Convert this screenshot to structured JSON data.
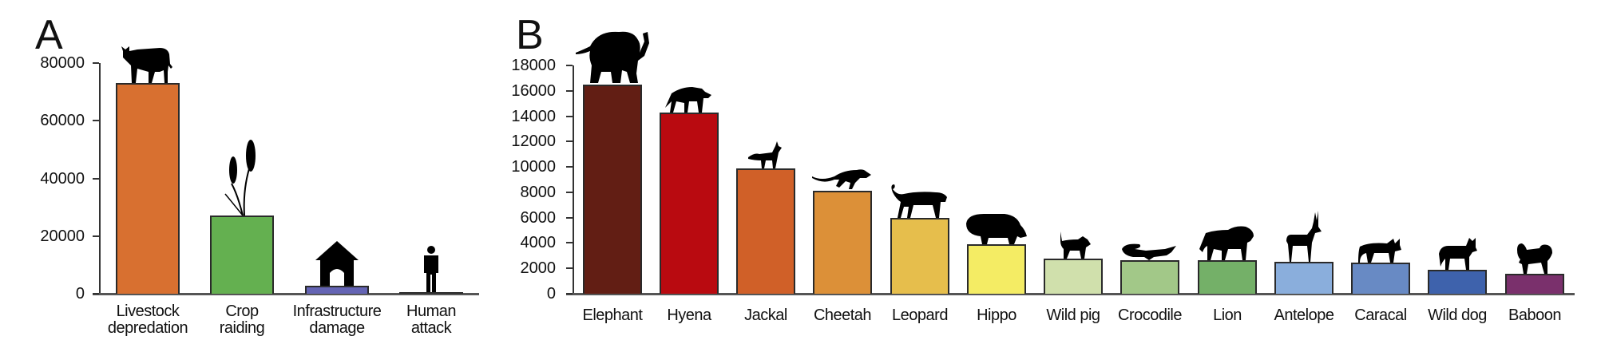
{
  "panels": {
    "A": {
      "letter": "A"
    },
    "B": {
      "letter": "B"
    }
  },
  "chart_data": [
    {
      "type": "bar",
      "title": "A",
      "xlabel": "",
      "ylabel": "",
      "ylim": [
        0,
        80000
      ],
      "yticks": [
        "0",
        "20000",
        "40000",
        "60000",
        "80000"
      ],
      "categories": [
        "Livestock depredation",
        "Crop raiding",
        "Infrastructure damage",
        "Human attack"
      ],
      "category_lines": [
        [
          "Livestock",
          "depredation"
        ],
        [
          "Crop",
          "raiding"
        ],
        [
          "Infrastructure",
          "damage"
        ],
        [
          "Human",
          "attack"
        ]
      ],
      "values": [
        73000,
        27000,
        2800,
        300
      ],
      "colors": [
        "#D87030",
        "#64B050",
        "#6464B4",
        "#999999"
      ],
      "icons": [
        "cow-icon",
        "wheat-icon",
        "house-icon",
        "person-icon"
      ],
      "grid": false,
      "legend": "none"
    },
    {
      "type": "bar",
      "title": "B",
      "xlabel": "",
      "ylabel": "",
      "ylim": [
        0,
        18000
      ],
      "yticks": [
        "0",
        "2000",
        "4000",
        "6000",
        "8000",
        "10000",
        "12000",
        "14000",
        "16000",
        "18000"
      ],
      "categories": [
        "Elephant",
        "Hyena",
        "Jackal",
        "Cheetah",
        "Leopard",
        "Hippo",
        "Wild pig",
        "Crocodile",
        "Lion",
        "Antelope",
        "Caracal",
        "Wild dog",
        "Baboon"
      ],
      "values": [
        16500,
        14300,
        9900,
        8100,
        6000,
        3900,
        2800,
        2650,
        2650,
        2500,
        2450,
        1900,
        1550
      ],
      "colors": [
        "#621E14",
        "#B90A10",
        "#D06028",
        "#DC9038",
        "#E6BE4C",
        "#F4EC64",
        "#D0E0AC",
        "#A2C888",
        "#74B068",
        "#8AAEDC",
        "#688AC4",
        "#3E62AC",
        "#7A306C"
      ],
      "icons": [
        "elephant-icon",
        "hyena-icon",
        "jackal-icon",
        "cheetah-icon",
        "leopard-icon",
        "hippo-icon",
        "wild-pig-icon",
        "crocodile-icon",
        "lion-icon",
        "antelope-icon",
        "caracal-icon",
        "wild-dog-icon",
        "baboon-icon"
      ],
      "grid": false,
      "legend": "none"
    }
  ]
}
